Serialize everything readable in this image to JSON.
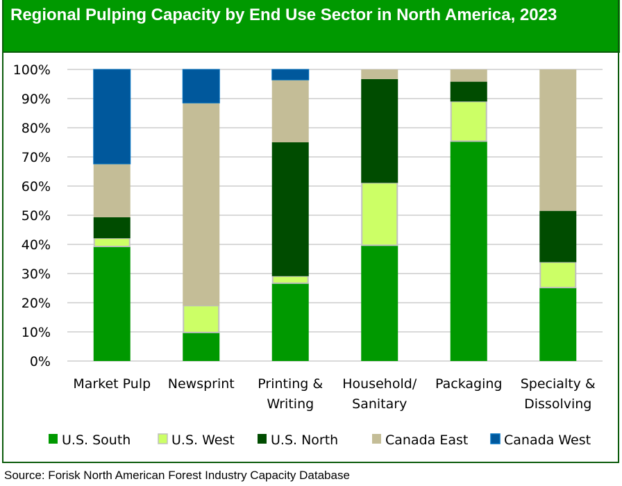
{
  "chart_data": {
    "type": "bar",
    "stacked": true,
    "normalized": true,
    "title": "Regional Pulping Capacity by End Use Sector in North America, 2023",
    "xlabel": "",
    "ylabel": "",
    "ylim": [
      0,
      100
    ],
    "yticks": [
      "0%",
      "10%",
      "20%",
      "30%",
      "40%",
      "50%",
      "60%",
      "70%",
      "80%",
      "90%",
      "100%"
    ],
    "grid": true,
    "legend_position": "bottom",
    "categories": [
      [
        "Market Pulp"
      ],
      [
        "Newsprint"
      ],
      [
        "Printing &",
        "Writing"
      ],
      [
        "Household/",
        "Sanitary"
      ],
      [
        "Packaging"
      ],
      [
        "Specialty &",
        "Dissolving"
      ]
    ],
    "series": [
      {
        "name": "U.S. South",
        "color": "#009900",
        "values": [
          39.3,
          9.8,
          26.7,
          39.7,
          75.4,
          25.2
        ]
      },
      {
        "name": "U.S. West",
        "color": "#ccff66",
        "values": [
          2.8,
          9.2,
          2.4,
          21.4,
          13.6,
          8.7
        ]
      },
      {
        "name": "U.S. North",
        "color": "#004c00",
        "values": [
          7.2,
          0.0,
          45.9,
          35.6,
          6.8,
          17.6
        ]
      },
      {
        "name": "Canada East",
        "color": "#c4bd97",
        "values": [
          18.3,
          69.5,
          21.4,
          3.3,
          4.2,
          48.5
        ]
      },
      {
        "name": "Canada West",
        "color": "#00589c",
        "values": [
          32.4,
          11.5,
          3.6,
          0.0,
          0.0,
          0.0
        ]
      }
    ]
  },
  "source": "Source: Forisk North American Forest Industry Capacity Database"
}
